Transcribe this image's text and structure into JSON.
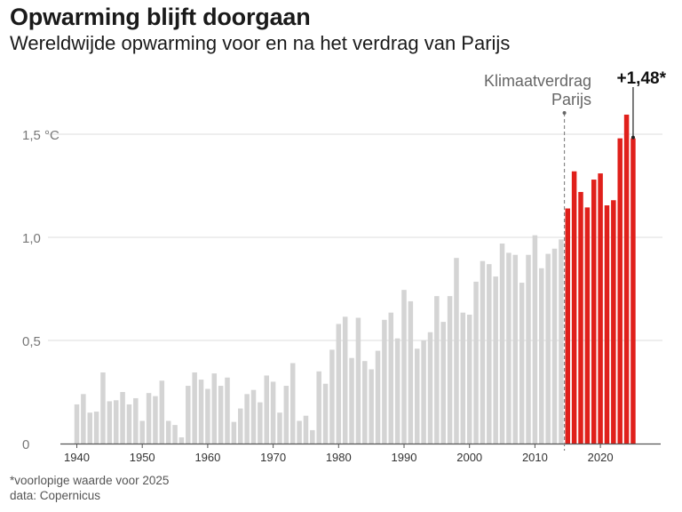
{
  "header": {
    "title": "Opwarming blijft doorgaan",
    "subtitle": "Wereldwijde opwarming voor en na het verdrag van Parijs"
  },
  "footer": {
    "note": "*voorlopige waarde voor 2025",
    "source": "data: Copernicus"
  },
  "colors": {
    "before": "#d4d4d4",
    "after": "#e0201b",
    "grid": "#dddddd",
    "axis": "#555555",
    "text": "#333333"
  },
  "chart_data": {
    "type": "bar",
    "ylim": [
      0,
      1.6
    ],
    "y_ticks": [
      {
        "value": 0,
        "label": "0"
      },
      {
        "value": 0.5,
        "label": "0,5"
      },
      {
        "value": 1.0,
        "label": "1,0"
      },
      {
        "value": 1.5,
        "label": "1,5 °C"
      }
    ],
    "x_ticks": [
      1940,
      1950,
      1960,
      1970,
      1980,
      1990,
      2000,
      2010,
      2020
    ],
    "grid": "horizontal",
    "highlight_from": 2015,
    "annotation_line": {
      "x": 2015,
      "label_line1": "Klimaatverdrag",
      "label_line2": "Parijs"
    },
    "callout": {
      "x": 2025,
      "label": "+1,48*"
    },
    "series": [
      {
        "x": [
          1940,
          1941,
          1942,
          1943,
          1944,
          1945,
          1946,
          1947,
          1948,
          1949,
          1950,
          1951,
          1952,
          1953,
          1954,
          1955,
          1956,
          1957,
          1958,
          1959,
          1960,
          1961,
          1962,
          1963,
          1964,
          1965,
          1966,
          1967,
          1968,
          1969,
          1970,
          1971,
          1972,
          1973,
          1974,
          1975,
          1976,
          1977,
          1978,
          1979,
          1980,
          1981,
          1982,
          1983,
          1984,
          1985,
          1986,
          1987,
          1988,
          1989,
          1990,
          1991,
          1992,
          1993,
          1994,
          1995,
          1996,
          1997,
          1998,
          1999,
          2000,
          2001,
          2002,
          2003,
          2004,
          2005,
          2006,
          2007,
          2008,
          2009,
          2010,
          2011,
          2012,
          2013,
          2014,
          2015,
          2016,
          2017,
          2018,
          2019,
          2020,
          2021,
          2022,
          2023,
          2024,
          2025
        ],
        "values": [
          0.19,
          0.24,
          0.15,
          0.155,
          0.345,
          0.205,
          0.21,
          0.25,
          0.19,
          0.22,
          0.11,
          0.245,
          0.23,
          0.305,
          0.11,
          0.09,
          0.03,
          0.28,
          0.345,
          0.31,
          0.265,
          0.34,
          0.28,
          0.32,
          0.105,
          0.17,
          0.24,
          0.26,
          0.2,
          0.33,
          0.3,
          0.15,
          0.28,
          0.39,
          0.11,
          0.135,
          0.065,
          0.35,
          0.29,
          0.455,
          0.58,
          0.615,
          0.415,
          0.61,
          0.4,
          0.36,
          0.45,
          0.6,
          0.635,
          0.51,
          0.745,
          0.69,
          0.46,
          0.5,
          0.54,
          0.715,
          0.59,
          0.715,
          0.9,
          0.635,
          0.625,
          0.785,
          0.885,
          0.87,
          0.81,
          0.97,
          0.925,
          0.915,
          0.78,
          0.915,
          1.01,
          0.85,
          0.92,
          0.945,
          0.99,
          1.14,
          1.32,
          1.22,
          1.145,
          1.28,
          1.31,
          1.155,
          1.18,
          1.48,
          1.595,
          1.48
        ]
      }
    ]
  }
}
